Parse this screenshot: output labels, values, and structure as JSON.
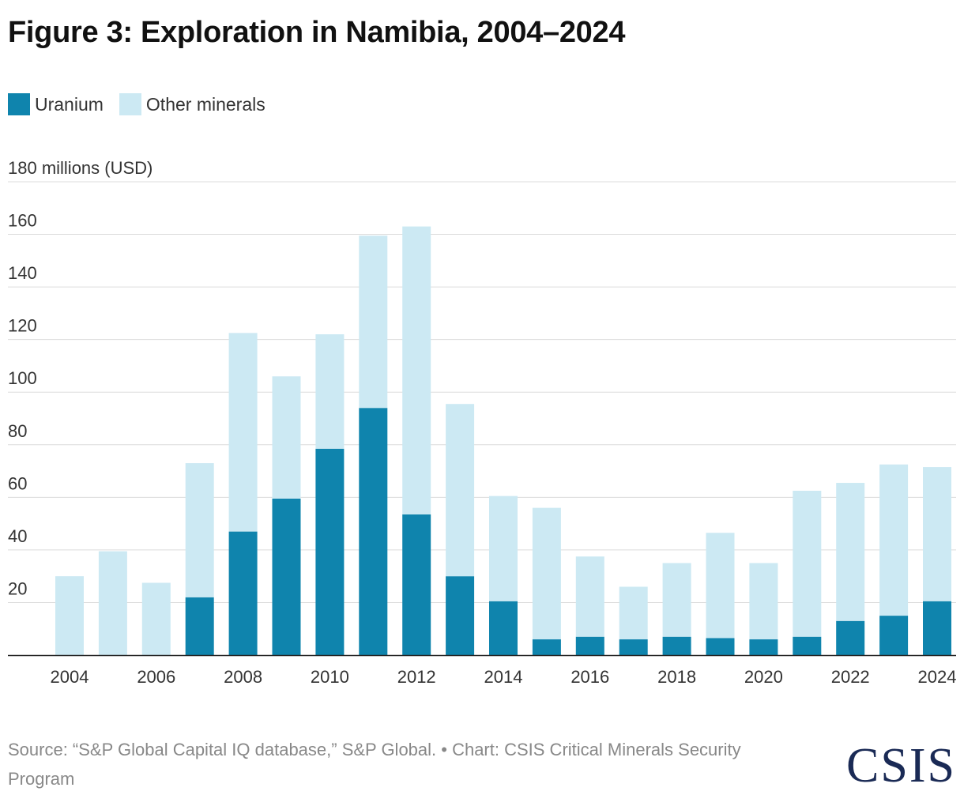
{
  "title": "Figure 3: Exploration in Namibia, 2004–2024",
  "legend": [
    {
      "label": "Uranium",
      "color": "#0f84ad"
    },
    {
      "label": "Other minerals",
      "color": "#cce9f3"
    }
  ],
  "source": "Source: “S&P Global Capital IQ database,” S&P Global. • Chart: CSIS Critical Minerals Security Program",
  "logo": "CSIS",
  "chart_data": {
    "type": "bar",
    "stacked": true,
    "title": "Figure 3: Exploration in Namibia, 2004–2024",
    "ylabel": "millions (USD)",
    "ylim": [
      0,
      180
    ],
    "yticks": [
      20,
      40,
      60,
      80,
      100,
      120,
      140,
      160
    ],
    "ytop_label": "180 millions (USD)",
    "categories": [
      "2004",
      "2005",
      "2006",
      "2007",
      "2008",
      "2009",
      "2010",
      "2011",
      "2012",
      "2013",
      "2014",
      "2015",
      "2016",
      "2017",
      "2018",
      "2019",
      "2020",
      "2021",
      "2022",
      "2023",
      "2024"
    ],
    "xtick_labels": [
      "2004",
      "2006",
      "2008",
      "2010",
      "2012",
      "2014",
      "2016",
      "2018",
      "2020",
      "2022",
      "2024"
    ],
    "series": [
      {
        "name": "Uranium",
        "color": "#0f84ad",
        "values": [
          0,
          0,
          0,
          22,
          47,
          59.5,
          78.5,
          94,
          53.5,
          30,
          20.5,
          6,
          7,
          6,
          7,
          6.5,
          6,
          7,
          13,
          15,
          20.5
        ]
      },
      {
        "name": "Other minerals",
        "color": "#cce9f3",
        "values": [
          30,
          39.5,
          27.5,
          51,
          75.5,
          46.5,
          43.5,
          65.5,
          109.5,
          65.5,
          40,
          50,
          30.5,
          20,
          28,
          40,
          29,
          55.5,
          52.5,
          57.5,
          51
        ]
      }
    ]
  }
}
